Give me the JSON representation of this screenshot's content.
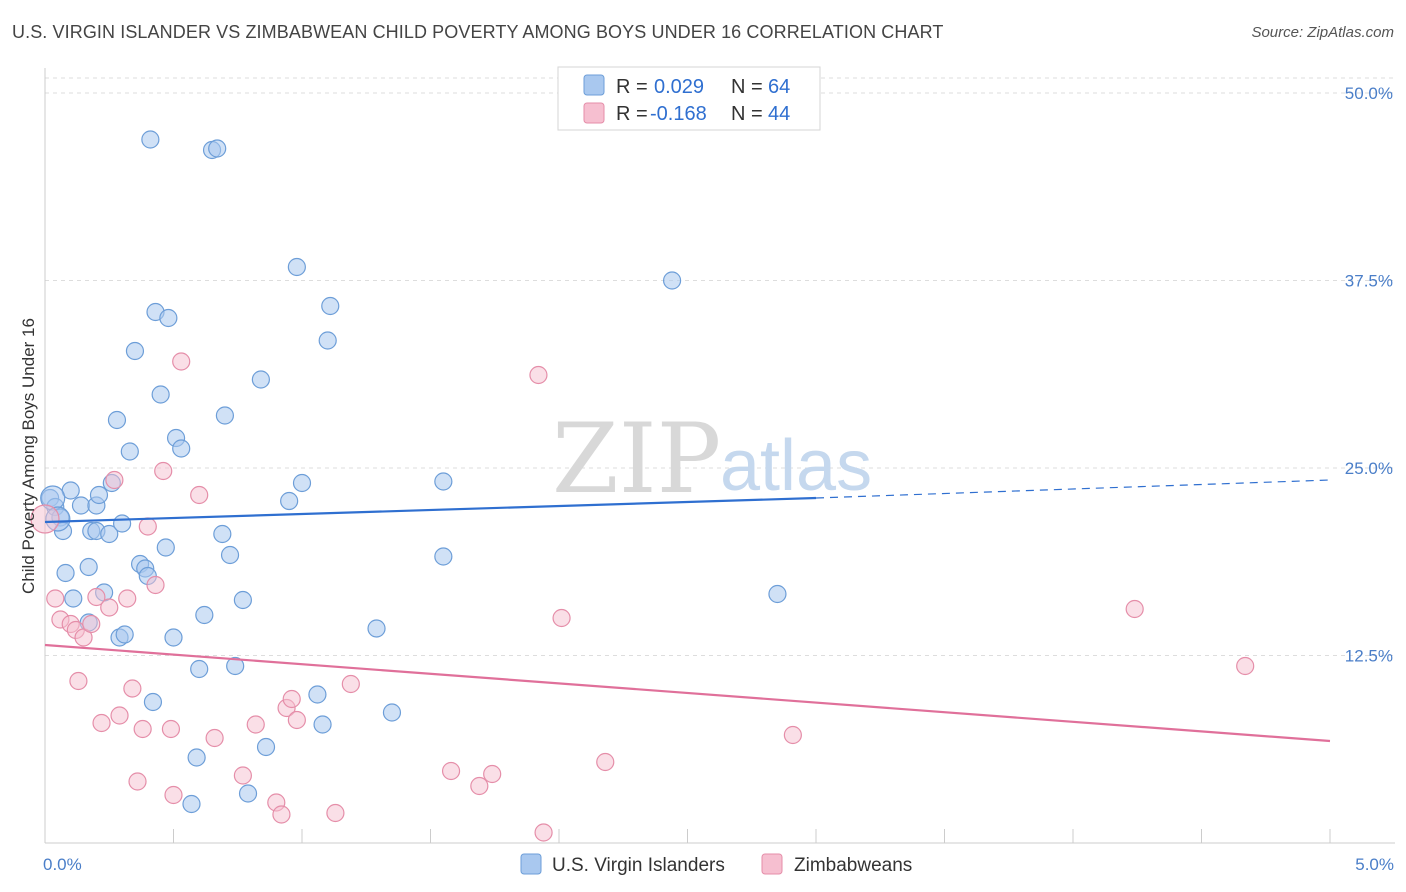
{
  "title": "U.S. VIRGIN ISLANDER VS ZIMBABWEAN CHILD POVERTY AMONG BOYS UNDER 16 CORRELATION CHART",
  "source": "Source: ZipAtlas.com",
  "watermark": {
    "zip": "ZIP",
    "atlas": "atlas"
  },
  "colors": {
    "blue_fill": "#a9c8ef",
    "blue_stroke": "#6d9ed8",
    "blue_line": "#2f6fd0",
    "pink_fill": "#f6bfd0",
    "pink_stroke": "#e58ea9",
    "pink_line": "#e0709a",
    "grid": "#dddddd",
    "tick_label": "#4a7ec8"
  },
  "legend": {
    "rows": [
      {
        "r_label": "R =",
        "r_value": "0.029",
        "n_label": "N =",
        "n_value": "64",
        "series": "blue"
      },
      {
        "r_label": "R =",
        "r_value": "-0.168",
        "n_label": "N =",
        "n_value": "44",
        "series": "pink"
      }
    ]
  },
  "chart_data": {
    "type": "scatter",
    "title": "U.S. VIRGIN ISLANDER VS ZIMBABWEAN CHILD POVERTY AMONG BOYS UNDER 16 CORRELATION CHART",
    "xlabel": "",
    "ylabel": "Child Poverty Among Boys Under 16",
    "xlim": [
      0,
      5
    ],
    "ylim": [
      0,
      51
    ],
    "x_tick_labels": [
      {
        "value": 0,
        "label": "0.0%"
      },
      {
        "value": 5,
        "label": "5.0%"
      }
    ],
    "y_tick_labels": [
      {
        "value": 12.5,
        "label": "12.5%"
      },
      {
        "value": 25,
        "label": "25.0%"
      },
      {
        "value": 37.5,
        "label": "37.5%"
      },
      {
        "value": 50,
        "label": "50.0%"
      }
    ],
    "grid": true,
    "legend_position": "top-center",
    "series": [
      {
        "name": "U.S. Virgin Islanders",
        "color": "#a9c8ef",
        "trend": {
          "x": [
            0,
            3.0
          ],
          "y": [
            21.4,
            23.0
          ],
          "dashed_to_x": 5,
          "dashed_to_y": 24.2
        },
        "points": [
          [
            0.02,
            23.0
          ],
          [
            0.04,
            22.4
          ],
          [
            0.06,
            21.7
          ],
          [
            0.07,
            20.8
          ],
          [
            0.08,
            18.0
          ],
          [
            0.1,
            23.5
          ],
          [
            0.11,
            16.3
          ],
          [
            0.14,
            22.5
          ],
          [
            0.17,
            18.4
          ],
          [
            0.17,
            14.7
          ],
          [
            0.18,
            20.8
          ],
          [
            0.2,
            22.5
          ],
          [
            0.2,
            20.8
          ],
          [
            0.21,
            23.2
          ],
          [
            0.23,
            16.7
          ],
          [
            0.25,
            20.6
          ],
          [
            0.26,
            24.0
          ],
          [
            0.28,
            28.2
          ],
          [
            0.29,
            13.7
          ],
          [
            0.3,
            21.3
          ],
          [
            0.31,
            13.9
          ],
          [
            0.33,
            26.1
          ],
          [
            0.35,
            32.8
          ],
          [
            0.37,
            18.6
          ],
          [
            0.39,
            18.3
          ],
          [
            0.4,
            17.8
          ],
          [
            0.41,
            46.9
          ],
          [
            0.42,
            9.4
          ],
          [
            0.43,
            35.4
          ],
          [
            0.45,
            29.9
          ],
          [
            0.47,
            19.7
          ],
          [
            0.48,
            35.0
          ],
          [
            0.5,
            13.7
          ],
          [
            0.51,
            27.0
          ],
          [
            0.53,
            26.3
          ],
          [
            0.57,
            2.6
          ],
          [
            0.59,
            5.7
          ],
          [
            0.6,
            11.6
          ],
          [
            0.62,
            15.2
          ],
          [
            0.65,
            46.2
          ],
          [
            0.67,
            46.3
          ],
          [
            0.69,
            20.6
          ],
          [
            0.7,
            28.5
          ],
          [
            0.72,
            19.2
          ],
          [
            0.74,
            11.8
          ],
          [
            0.77,
            16.2
          ],
          [
            0.79,
            3.3
          ],
          [
            0.84,
            30.9
          ],
          [
            0.86,
            6.4
          ],
          [
            0.95,
            22.8
          ],
          [
            0.98,
            38.4
          ],
          [
            1.0,
            24.0
          ],
          [
            1.06,
            9.9
          ],
          [
            1.08,
            7.9
          ],
          [
            1.1,
            33.5
          ],
          [
            1.11,
            35.8
          ],
          [
            1.29,
            14.3
          ],
          [
            1.35,
            8.7
          ],
          [
            1.55,
            24.1
          ],
          [
            1.55,
            19.1
          ],
          [
            2.44,
            37.5
          ],
          [
            2.85,
            16.6
          ]
        ],
        "large_points": [
          [
            0.03,
            23.0
          ],
          [
            0.05,
            21.6
          ]
        ]
      },
      {
        "name": "Zimbabweans",
        "color": "#f6bfd0",
        "trend": {
          "x": [
            0,
            5
          ],
          "y": [
            13.2,
            6.8
          ]
        },
        "points": [
          [
            0.0,
            21.6
          ],
          [
            0.04,
            16.3
          ],
          [
            0.06,
            14.9
          ],
          [
            0.1,
            14.6
          ],
          [
            0.12,
            14.2
          ],
          [
            0.13,
            10.8
          ],
          [
            0.15,
            13.7
          ],
          [
            0.18,
            14.6
          ],
          [
            0.2,
            16.4
          ],
          [
            0.22,
            8.0
          ],
          [
            0.25,
            15.7
          ],
          [
            0.27,
            24.2
          ],
          [
            0.29,
            8.5
          ],
          [
            0.32,
            16.3
          ],
          [
            0.34,
            10.3
          ],
          [
            0.36,
            4.1
          ],
          [
            0.38,
            7.6
          ],
          [
            0.4,
            21.1
          ],
          [
            0.43,
            17.2
          ],
          [
            0.46,
            24.8
          ],
          [
            0.49,
            7.6
          ],
          [
            0.5,
            3.2
          ],
          [
            0.53,
            32.1
          ],
          [
            0.6,
            23.2
          ],
          [
            0.66,
            7.0
          ],
          [
            0.77,
            4.5
          ],
          [
            0.82,
            7.9
          ],
          [
            0.9,
            2.7
          ],
          [
            0.92,
            1.9
          ],
          [
            0.94,
            9.0
          ],
          [
            0.96,
            9.6
          ],
          [
            0.98,
            8.2
          ],
          [
            1.13,
            2.0
          ],
          [
            1.19,
            10.6
          ],
          [
            1.58,
            4.8
          ],
          [
            1.69,
            3.8
          ],
          [
            1.74,
            4.6
          ],
          [
            1.92,
            31.2
          ],
          [
            1.94,
            0.7
          ],
          [
            2.01,
            15.0
          ],
          [
            2.18,
            5.4
          ],
          [
            2.91,
            7.2
          ],
          [
            4.24,
            15.6
          ],
          [
            4.67,
            11.8
          ]
        ]
      }
    ]
  }
}
